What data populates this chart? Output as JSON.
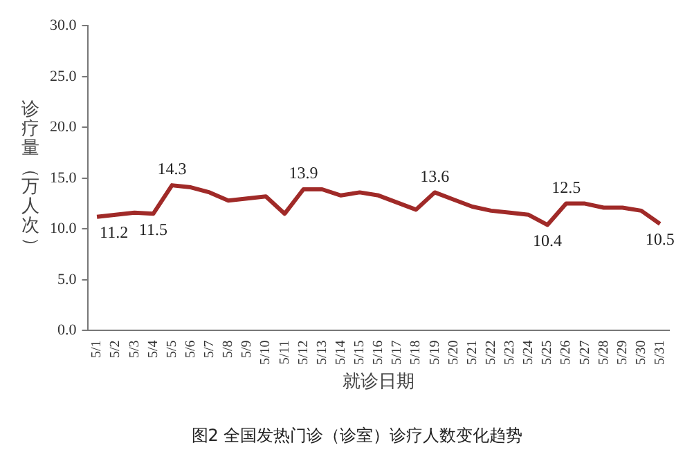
{
  "chart_data": {
    "type": "line",
    "title": "图2 全国发热门诊（诊室）诊疗人数变化趋势",
    "xlabel": "就诊日期",
    "ylabel": "诊疗量（万人次）",
    "categories": [
      "5/1",
      "5/2",
      "5/3",
      "5/4",
      "5/5",
      "5/6",
      "5/7",
      "5/8",
      "5/9",
      "5/10",
      "5/11",
      "5/12",
      "5/13",
      "5/14",
      "5/15",
      "5/16",
      "5/17",
      "5/18",
      "5/19",
      "5/20",
      "5/21",
      "5/22",
      "5/23",
      "5/24",
      "5/25",
      "5/26",
      "5/27",
      "5/28",
      "5/29",
      "5/30",
      "5/31"
    ],
    "series": [
      {
        "color": "#a02a28",
        "values": [
          11.2,
          11.4,
          11.6,
          11.5,
          14.3,
          14.1,
          13.6,
          12.8,
          13.0,
          13.2,
          11.5,
          13.9,
          13.9,
          13.3,
          13.6,
          13.3,
          12.6,
          11.9,
          13.6,
          12.9,
          12.2,
          11.8,
          11.6,
          11.4,
          10.4,
          12.5,
          12.5,
          12.1,
          12.1,
          11.8,
          10.5
        ],
        "value_labels": [
          "11.2",
          null,
          null,
          "11.5",
          "14.3",
          null,
          null,
          null,
          null,
          null,
          null,
          "13.9",
          null,
          null,
          null,
          null,
          null,
          null,
          "13.6",
          null,
          null,
          null,
          null,
          null,
          "10.4",
          "12.5",
          null,
          null,
          null,
          null,
          "10.5"
        ]
      }
    ],
    "ylim": [
      0,
      30
    ],
    "yticks": [
      {
        "value": 0,
        "label": "0.0"
      },
      {
        "value": 5,
        "label": "5.0"
      },
      {
        "value": 10,
        "label": "10.0"
      },
      {
        "value": 15,
        "label": "15.0"
      },
      {
        "value": 20,
        "label": "20.0"
      },
      {
        "value": 25,
        "label": "25.0"
      },
      {
        "value": 30,
        "label": "30.0"
      }
    ],
    "grid": false,
    "legend": false,
    "marker": "none",
    "line_style": "solid"
  }
}
